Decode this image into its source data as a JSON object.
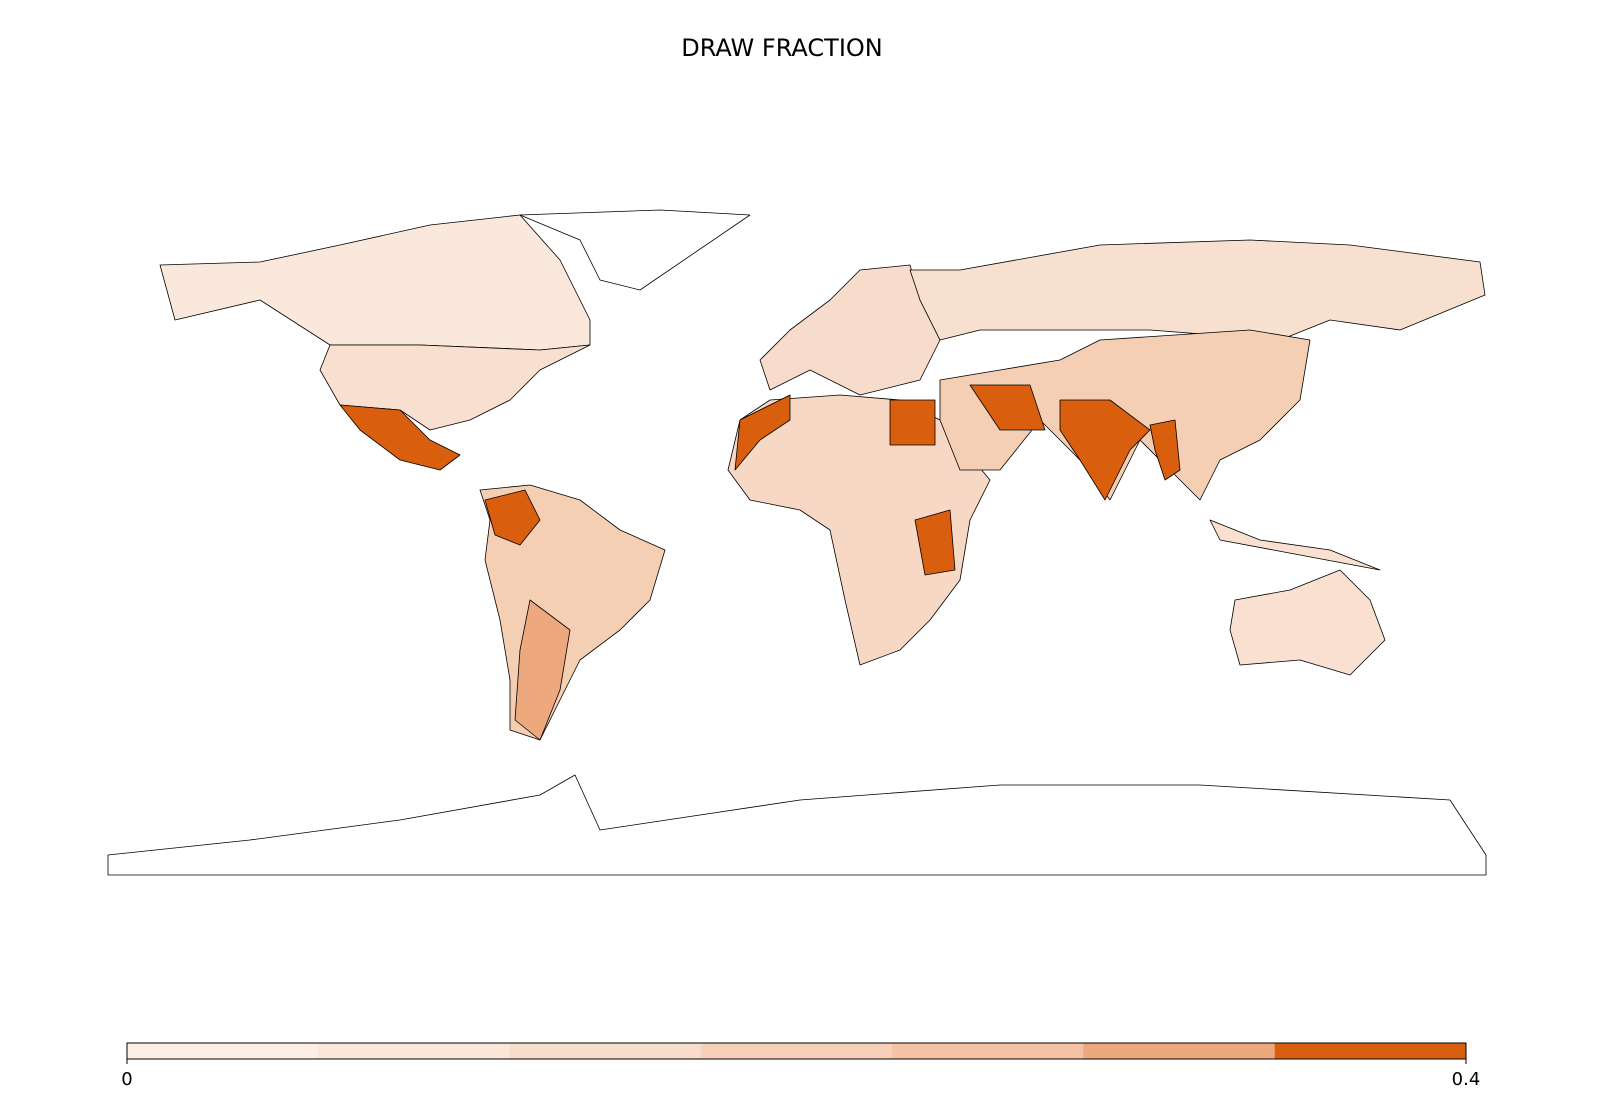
{
  "chart_data": {
    "type": "choropleth",
    "title": "DRAW FRACTION",
    "colorbar": {
      "lim": [
        0,
        0.4
      ],
      "ticks": [
        0,
        0.4
      ],
      "colors": [
        "#fdeee6",
        "#fbe6da",
        "#f9ddcb",
        "#f6d0b8",
        "#f3c3a3",
        "#eda97d",
        "#d95f0e"
      ]
    }
  }
}
